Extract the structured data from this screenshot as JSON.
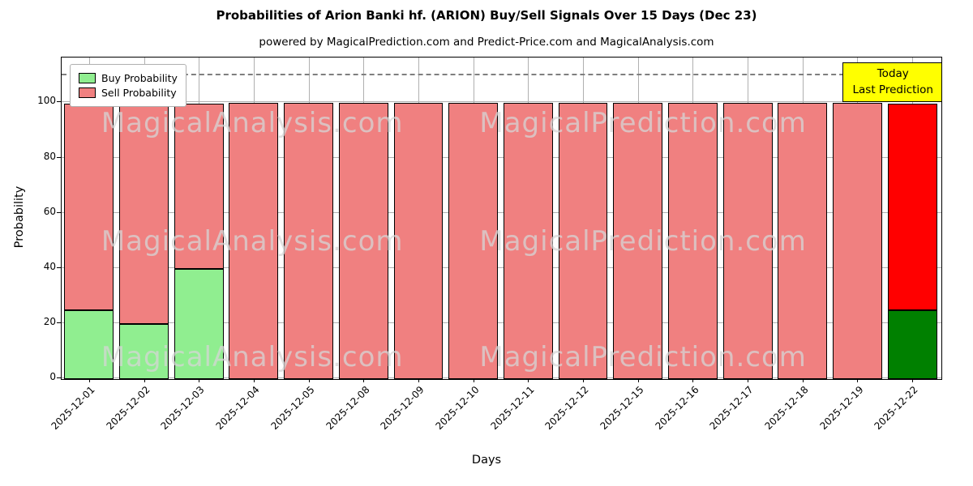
{
  "title": "Probabilities of Arion Banki hf. (ARION) Buy/Sell Signals Over 15 Days (Dec 23)",
  "subtitle": "powered by MagicalPrediction.com and Predict-Price.com and MagicalAnalysis.com",
  "legend": {
    "items": [
      {
        "label": "Buy Probability",
        "color": "#90EE90"
      },
      {
        "label": "Sell Probability",
        "color": "#F08080"
      }
    ]
  },
  "annotation": {
    "line1": "Today",
    "line2": "Last Prediction",
    "bg_color": "#FFFF00"
  },
  "watermarks": {
    "left": "MagicalAnalysis.com",
    "right": "MagicalPrediction.com"
  },
  "chart_data": {
    "type": "bar",
    "stacked": true,
    "title": "Probabilities of Arion Banki hf. (ARION) Buy/Sell Signals Over 15 Days (Dec 23)",
    "xlabel": "Days",
    "ylabel": "Probability",
    "ylim": [
      0,
      116
    ],
    "yticks": [
      0,
      20,
      40,
      60,
      80,
      100
    ],
    "reference_line_y": 110,
    "grid": true,
    "legend_position": "upper left",
    "categories": [
      "2025-12-01",
      "2025-12-02",
      "2025-12-03",
      "2025-12-04",
      "2025-12-05",
      "2025-12-08",
      "2025-12-09",
      "2025-12-10",
      "2025-12-11",
      "2025-12-12",
      "2025-12-15",
      "2025-12-16",
      "2025-12-17",
      "2025-12-18",
      "2025-12-19",
      "2025-12-22"
    ],
    "series": [
      {
        "name": "Buy Probability",
        "color": "#90EE90",
        "today_color": "#008000",
        "values": [
          25,
          20,
          40,
          0,
          0,
          0,
          0,
          0,
          0,
          0,
          0,
          0,
          0,
          0,
          0,
          25
        ]
      },
      {
        "name": "Sell Probability",
        "color": "#F08080",
        "today_color": "#FF0000",
        "values": [
          75,
          80,
          60,
          100,
          100,
          100,
          100,
          100,
          100,
          100,
          100,
          100,
          100,
          100,
          100,
          75
        ]
      }
    ],
    "today_index": 15
  }
}
